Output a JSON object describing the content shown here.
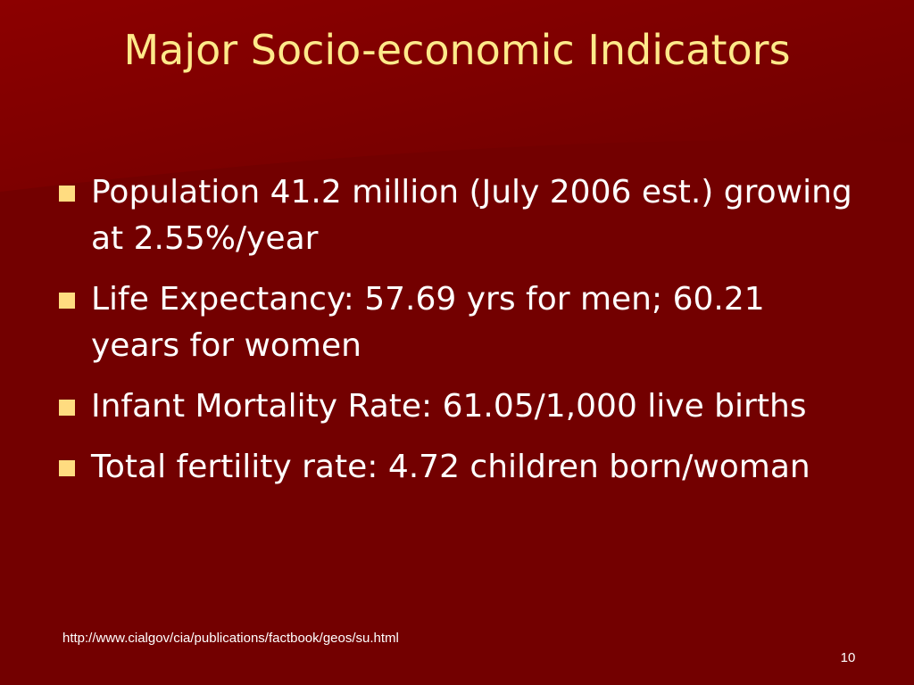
{
  "slide": {
    "title": "Major Socio-economic Indicators",
    "bullets": [
      {
        "text": "Population 41.2 million (July 2006 est.) growing at 2.55%/year"
      },
      {
        "text": "Life Expectancy: 57.69 yrs for men; 60.21 years for women"
      },
      {
        "text": "Infant Mortality Rate: 61.05/1,000 live births"
      },
      {
        "text": "Total fertility rate: 4.72 children born/woman"
      }
    ],
    "source_url": "http://www.cialgov/cia/publications/factbook/geos/su.html",
    "page_number": "10"
  },
  "colors": {
    "background": "#7a0000",
    "title": "#ffe98a",
    "bullet_marker": "#ffdc80",
    "text": "#ffffff"
  }
}
